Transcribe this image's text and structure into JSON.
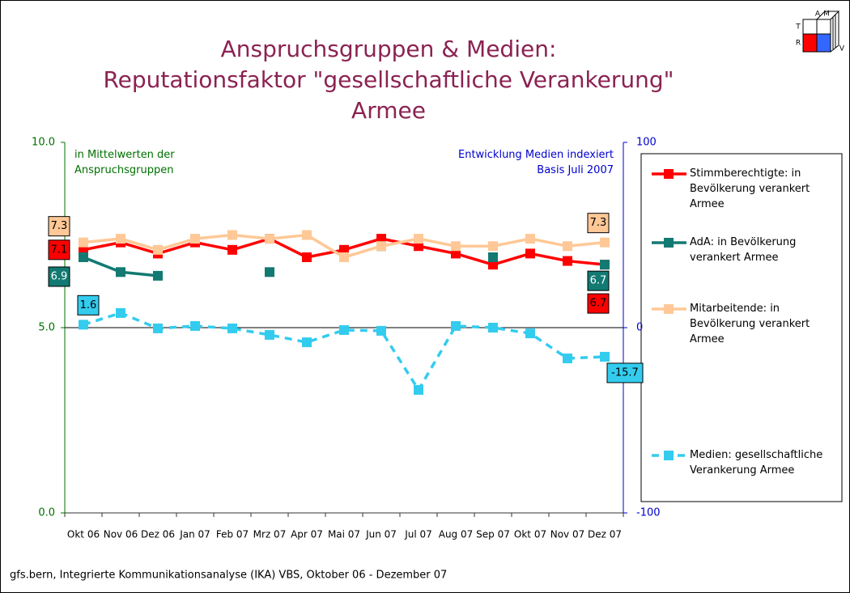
{
  "chart_data": {
    "type": "line",
    "title": [
      "Anspruchsgruppen & Medien:",
      "Reputationsfaktor \"gesellschaftliche Verankerung\"",
      "Armee"
    ],
    "annotations": [
      "in Mittelwerten der Anspruchsgruppen",
      "Entwicklung Medien indexiert Basis Juli 2007"
    ],
    "footer": "gfs.bern, Integrierte Kommunikationsanalyse (IKA) VBS, Oktober 06 - Dezember 07",
    "logo": [
      "A",
      "M",
      "T",
      "R",
      "V"
    ],
    "categories": [
      "Okt 06",
      "Nov 06",
      "Dez 06",
      "Jan 07",
      "Feb 07",
      "Mrz 07",
      "Apr 07",
      "Mai 07",
      "Jun 07",
      "Jul 07",
      "Aug 07",
      "Sep 07",
      "Okt 07",
      "Nov 07",
      "Dez 07"
    ],
    "ylim": [
      0,
      10
    ],
    "yticks": [
      {
        "value": 0,
        "label": "0.0"
      },
      {
        "value": 5,
        "label": "5.0"
      },
      {
        "value": 10,
        "label": "10.0"
      }
    ],
    "y2lim": [
      -100,
      100
    ],
    "y2ticks": [
      -100,
      0,
      100
    ],
    "grid": true,
    "legend": "right",
    "series": [
      {
        "name": "Stimmberechtigte: in Bevölkerung verankert Armee",
        "color": "#ff0000",
        "values": [
          7.1,
          7.3,
          7.0,
          7.3,
          7.1,
          7.4,
          6.9,
          7.1,
          7.4,
          7.2,
          7.0,
          6.7,
          7.0,
          6.8,
          6.7
        ]
      },
      {
        "name": "AdA: in Bevölkerung verankert Armee",
        "color": "#127a72",
        "values": [
          6.9,
          6.5,
          6.4,
          null,
          null,
          6.5,
          null,
          null,
          7.2,
          null,
          null,
          6.9,
          null,
          null,
          6.7
        ]
      },
      {
        "name": "Mitarbeitende: in Bevölkerung verankert Armee",
        "color": "#ffc896",
        "values": [
          7.3,
          7.4,
          7.1,
          7.4,
          7.5,
          7.4,
          7.5,
          6.9,
          7.2,
          7.4,
          7.2,
          7.2,
          7.4,
          7.2,
          7.3
        ]
      },
      {
        "name": "Medien: gesellschaftliche Verankerung Armee",
        "color": "#33ccee",
        "axis": "y2",
        "dashed": true,
        "values": [
          1.6,
          7.9,
          -0.4,
          0.9,
          -0.4,
          -3.9,
          -7.9,
          -1.3,
          -1.7,
          -33.6,
          0.9,
          0,
          -3.1,
          -16.6,
          -15.7
        ]
      }
    ]
  }
}
